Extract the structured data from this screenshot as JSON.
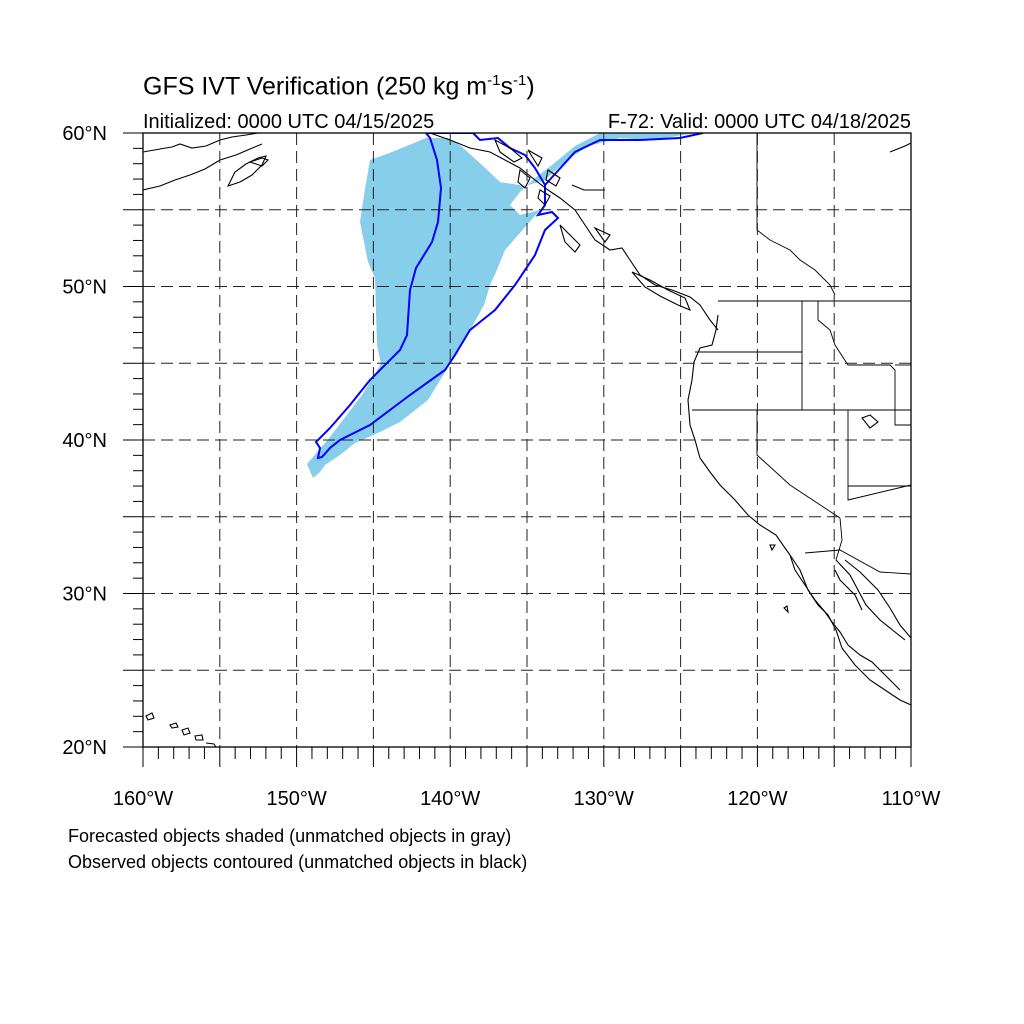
{
  "title": {
    "main": "GFS IVT Verification (250 kg m",
    "sup1": "-1",
    "mid": "s",
    "sup2": "-1",
    "end": ")"
  },
  "init_label": "Initialized: 0000 UTC 04/15/2025",
  "valid_label": "F-72: Valid: 0000 UTC 04/18/2025",
  "map": {
    "lon_labels": [
      "160°W",
      "150°W",
      "140°W",
      "130°W",
      "120°W",
      "110°W"
    ],
    "lat_labels": [
      "20°N",
      "30°N",
      "40°N",
      "50°N",
      "60°N"
    ],
    "lon_range": [
      -160,
      -110
    ],
    "lat_range": [
      20,
      60
    ],
    "grid_interval_deg": 5,
    "grid_style": "dashed",
    "colors": {
      "forecast_fill": "#87ceeb",
      "observed_contour": "#0000ff",
      "coastline": "#000000"
    },
    "forecast_objects": [
      {
        "matched": true,
        "label": "Forecasted IVT object",
        "extent_lon": [
          -149,
          -127
        ],
        "extent_lat": [
          37.8,
          60
        ]
      }
    ],
    "observed_objects": [
      {
        "matched": true,
        "label": "Observed IVT object",
        "extent_lon": [
          -149,
          -123
        ],
        "extent_lat": [
          38.8,
          60
        ]
      }
    ]
  },
  "notes": [
    "Forecasted objects shaded (unmatched objects in gray)",
    "Observed objects contoured (unmatched objects in black)"
  ]
}
